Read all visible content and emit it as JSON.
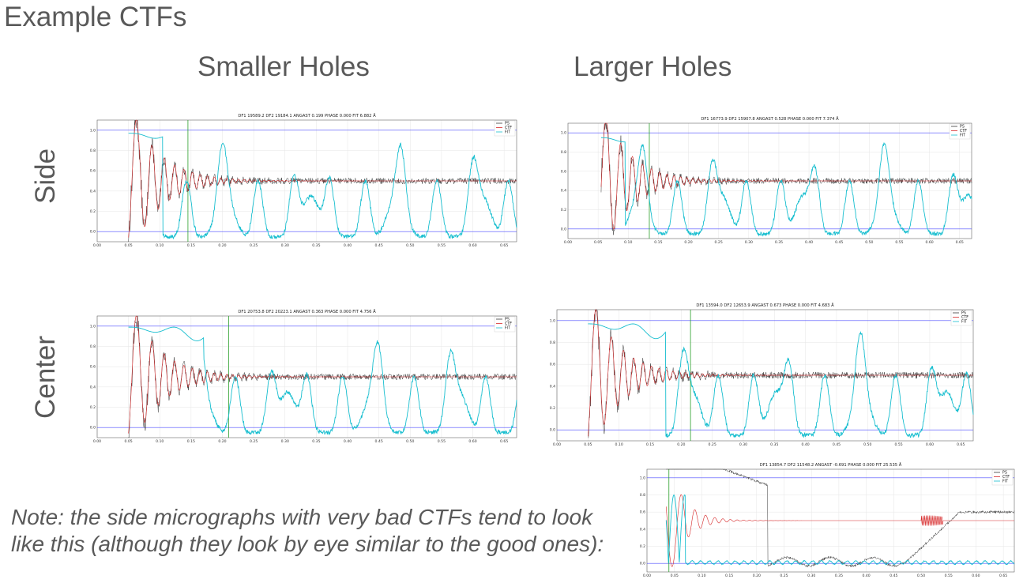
{
  "slide": {
    "title": "Example CTFs",
    "columns": [
      "Smaller Holes",
      "Larger Holes"
    ],
    "rows": [
      "Side",
      "Center"
    ],
    "note_lines": [
      "Note: the side micrographs with very bad CTFs tend to look",
      "like this (although they look by eye similar to the good ones):"
    ]
  },
  "colors": {
    "ps": "#3a3a3a",
    "ctf": "#d62728",
    "fit": "#17becf",
    "ref_line": "#4c4cff",
    "cutoff": "#2ca02c",
    "grid": "#e6e6e6"
  },
  "chart_data": [
    {
      "id": "side-small",
      "type": "line",
      "title": "DF1 19589.2 DF2 19184.1 ANGAST 0.199 PHASE 0.000 FIT 6.882 Å",
      "xticks": [
        "0.00",
        "0.05",
        "0.10",
        "0.15",
        "0.20",
        "0.25",
        "0.30",
        "0.35",
        "0.40",
        "0.45",
        "0.50",
        "0.55",
        "0.60",
        "0.65"
      ],
      "yticks": [
        "0.0",
        "0.2",
        "0.4",
        "0.6",
        "0.8",
        "1.0"
      ],
      "xlim": [
        0,
        0.67
      ],
      "ylim": [
        -0.1,
        1.1
      ],
      "legend": [
        "PS",
        "CTF",
        "FIT"
      ],
      "series_start": 0.05,
      "cutoff_x": 0.145,
      "fit_level": 0.97,
      "quality": "good"
    },
    {
      "id": "side-large",
      "type": "line",
      "title": "DF1 16773.9 DF2 15907.8 ANGAST 0.528 PHASE 0.000 FIT 7.374 Å",
      "xticks": [
        "0.00",
        "0.05",
        "0.10",
        "0.15",
        "0.20",
        "0.25",
        "0.30",
        "0.35",
        "0.40",
        "0.45",
        "0.50",
        "0.55",
        "0.60",
        "0.65"
      ],
      "yticks": [
        "0.0",
        "0.2",
        "0.4",
        "0.6",
        "0.8",
        "1.0"
      ],
      "xlim": [
        0,
        0.67
      ],
      "ylim": [
        -0.1,
        1.1
      ],
      "legend": [
        "PS",
        "CTF",
        "FIT"
      ],
      "series_start": 0.055,
      "cutoff_x": 0.135,
      "fit_level": 0.95,
      "quality": "good"
    },
    {
      "id": "center-small",
      "type": "line",
      "title": "DF1 20753.8 DF2 20223.1 ANGAST 0.363 PHASE 0.000 FIT 4.756 Å",
      "xticks": [
        "0.00",
        "0.05",
        "0.10",
        "0.15",
        "0.20",
        "0.25",
        "0.30",
        "0.35",
        "0.40",
        "0.45",
        "0.50",
        "0.55",
        "0.60",
        "0.65"
      ],
      "yticks": [
        "0.0",
        "0.2",
        "0.4",
        "0.6",
        "0.8",
        "1.0"
      ],
      "xlim": [
        0,
        0.67
      ],
      "ylim": [
        -0.1,
        1.1
      ],
      "legend": [
        "PS",
        "CTF",
        "FIT"
      ],
      "series_start": 0.05,
      "cutoff_x": 0.21,
      "fit_level": 0.99,
      "quality": "good"
    },
    {
      "id": "center-large",
      "type": "line",
      "title": "DF1 13594.0 DF2 12653.9 ANGAST 0.673 PHASE 0.000 FIT 4.683 Å",
      "xticks": [
        "0.00",
        "0.05",
        "0.10",
        "0.15",
        "0.20",
        "0.25",
        "0.30",
        "0.35",
        "0.40",
        "0.45",
        "0.50",
        "0.55",
        "0.60",
        "0.65"
      ],
      "yticks": [
        "0.0",
        "0.2",
        "0.4",
        "0.6",
        "0.8",
        "1.0"
      ],
      "xlim": [
        0,
        0.67
      ],
      "ylim": [
        -0.1,
        1.1
      ],
      "legend": [
        "PS",
        "CTF",
        "FIT"
      ],
      "series_start": 0.05,
      "cutoff_x": 0.215,
      "fit_level": 0.97,
      "quality": "good"
    },
    {
      "id": "bad-example",
      "type": "line",
      "title": "DF1 13854.7 DF2 11548.2 ANGAST -0.691 PHASE 0.000 FIT 25.535 Å",
      "xticks": [
        "0.00",
        "0.05",
        "0.10",
        "0.15",
        "0.20",
        "0.25",
        "0.30",
        "0.35",
        "0.40",
        "0.45",
        "0.50",
        "0.55",
        "0.60",
        "0.65"
      ],
      "yticks": [
        "0.0",
        "0.2",
        "0.4",
        "0.6",
        "0.8",
        "1.0"
      ],
      "xlim": [
        0,
        0.67
      ],
      "ylim": [
        -0.1,
        1.1
      ],
      "legend": [
        "PS",
        "CTF",
        "FIT"
      ],
      "series_start": 0.035,
      "cutoff_x": 0.04,
      "fit_level": 0.0,
      "quality": "bad"
    }
  ]
}
